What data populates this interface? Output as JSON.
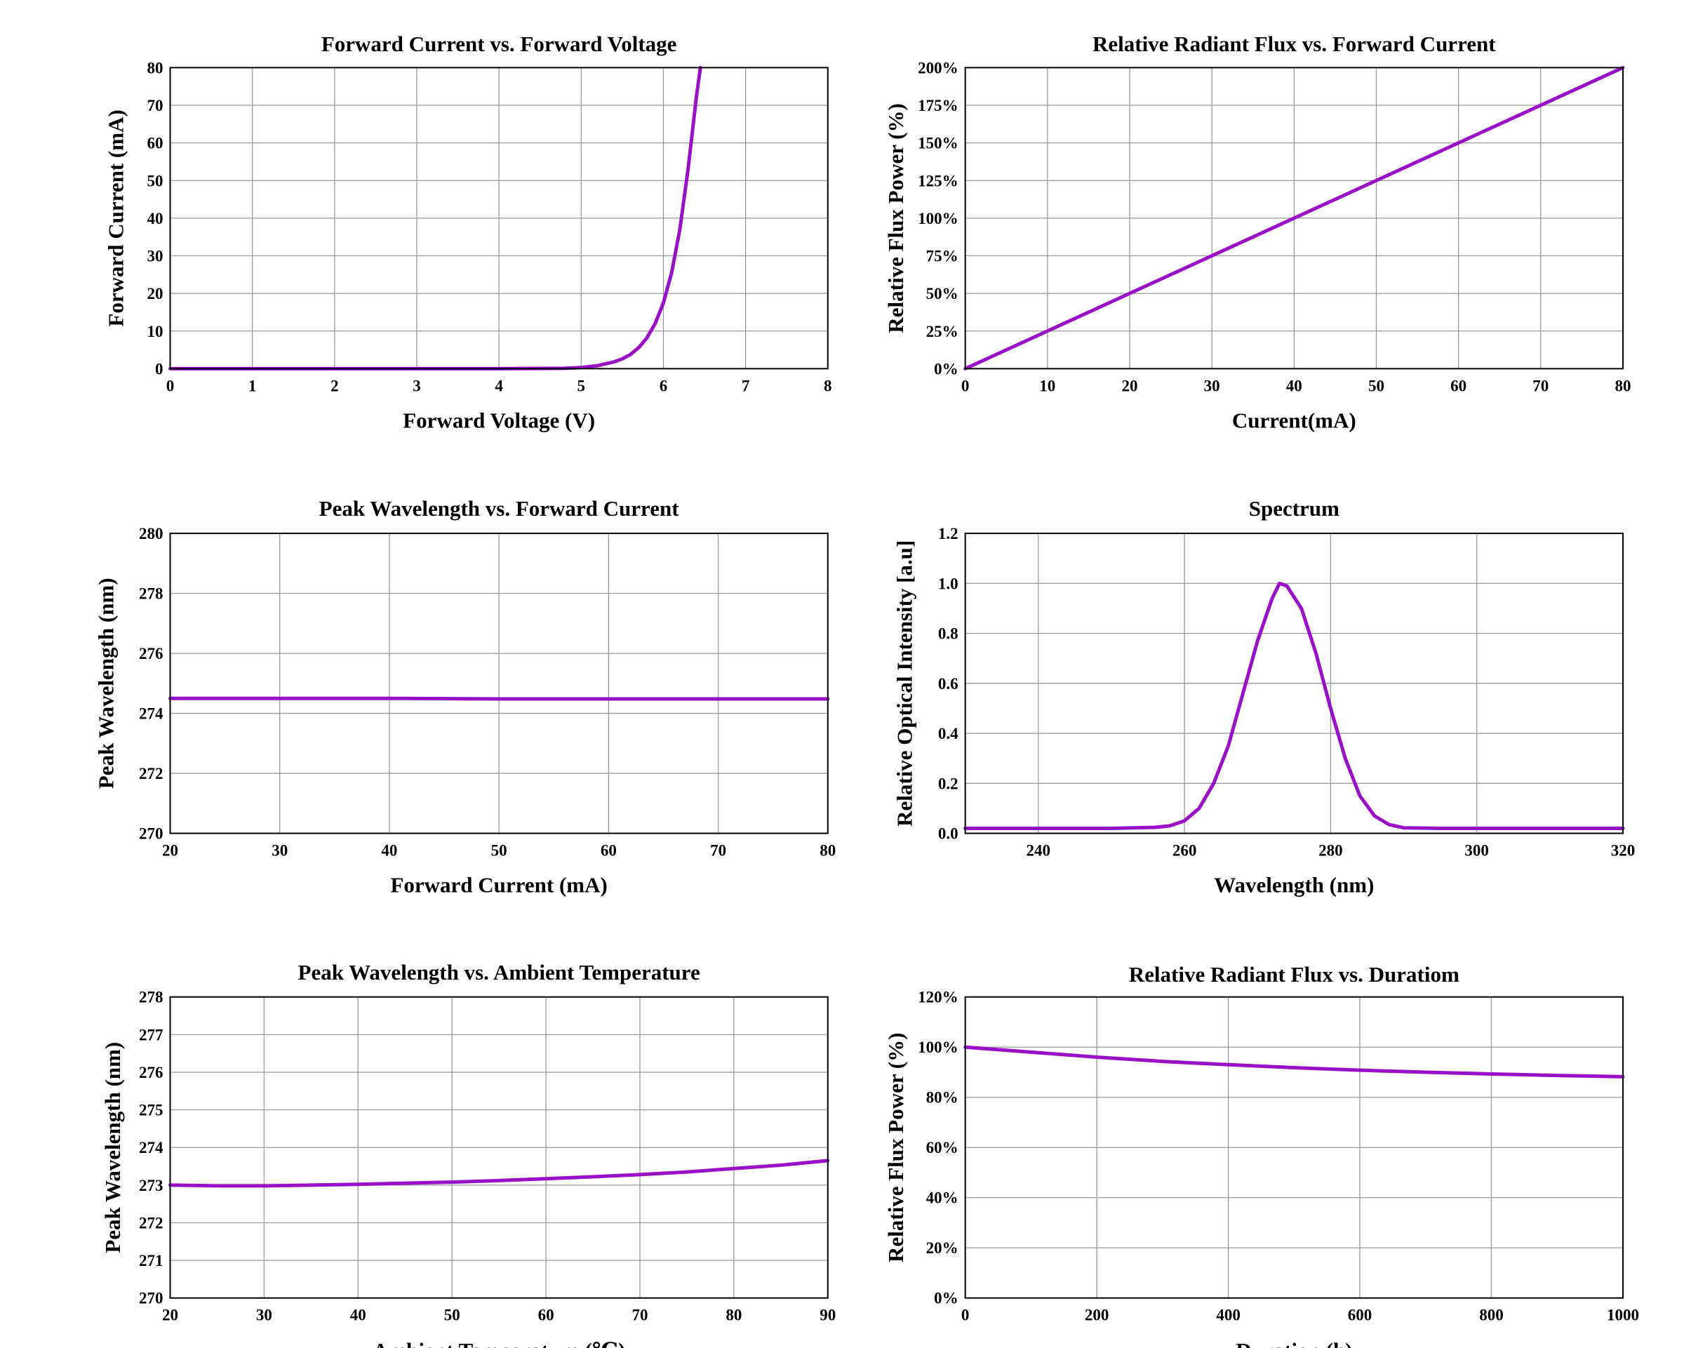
{
  "chart_data": [
    {
      "type": "line",
      "title": "Forward Current vs. Forward Voltage",
      "xlabel": "Forward Voltage (V)",
      "ylabel": "Forward Current (mA)",
      "xlim": [
        0,
        8
      ],
      "ylim": [
        0,
        80
      ],
      "xticks": [
        0,
        1,
        2,
        3,
        4,
        5,
        6,
        7,
        8
      ],
      "yticks": [
        0,
        10,
        20,
        30,
        40,
        50,
        60,
        70,
        80
      ],
      "xtick_labels": [
        "0",
        "1",
        "2",
        "3",
        "4",
        "5",
        "6",
        "7",
        "8"
      ],
      "ytick_labels": [
        "0",
        "10",
        "20",
        "30",
        "40",
        "50",
        "60",
        "70",
        "80"
      ],
      "grid": true,
      "series": [
        {
          "color": "#9a0fc8",
          "x": [
            0,
            1,
            2,
            3,
            4,
            4.8,
            5.0,
            5.2,
            5.4,
            5.5,
            5.6,
            5.7,
            5.8,
            5.9,
            6.0,
            6.1,
            6.2,
            6.3,
            6.4,
            6.45
          ],
          "y": [
            0,
            0,
            0,
            0,
            0,
            0.1,
            0.3,
            0.8,
            1.8,
            2.6,
            3.8,
            5.6,
            8.2,
            12.0,
            17.5,
            25.5,
            37.0,
            53.0,
            72.0,
            80.0
          ]
        }
      ]
    },
    {
      "type": "line",
      "title": "Relative Radiant Flux vs. Forward Current",
      "xlabel": "Current(mA)",
      "ylabel": "Relative Flux Power (%)",
      "xlim": [
        0,
        80
      ],
      "ylim": [
        0,
        200
      ],
      "xticks": [
        0,
        10,
        20,
        30,
        40,
        50,
        60,
        70,
        80
      ],
      "yticks": [
        0,
        25,
        50,
        75,
        100,
        125,
        150,
        175,
        200
      ],
      "xtick_labels": [
        "0",
        "10",
        "20",
        "30",
        "40",
        "50",
        "60",
        "70",
        "80"
      ],
      "ytick_labels": [
        "0%",
        "25%",
        "50%",
        "75%",
        "100%",
        "125%",
        "150%",
        "175%",
        "200%"
      ],
      "grid": true,
      "series": [
        {
          "color": "#9a0fc8",
          "x": [
            0,
            10,
            20,
            30,
            40,
            50,
            60,
            70,
            80
          ],
          "y": [
            0,
            25,
            50,
            75,
            100,
            125,
            150,
            175,
            200
          ]
        }
      ]
    },
    {
      "type": "line",
      "title": "Peak Wavelength vs. Forward Current",
      "xlabel": "Forward Current (mA)",
      "ylabel": "Peak Wavelength (nm)",
      "xlim": [
        20,
        80
      ],
      "ylim": [
        270,
        280
      ],
      "xticks": [
        20,
        30,
        40,
        50,
        60,
        70,
        80
      ],
      "yticks": [
        270,
        272,
        274,
        276,
        278,
        280
      ],
      "xtick_labels": [
        "20",
        "30",
        "40",
        "50",
        "60",
        "70",
        "80"
      ],
      "ytick_labels": [
        "270",
        "272",
        "274",
        "276",
        "278",
        "280"
      ],
      "grid": true,
      "series": [
        {
          "color": "#9a0fc8",
          "x": [
            20,
            30,
            40,
            50,
            60,
            70,
            80
          ],
          "y": [
            274.5,
            274.5,
            274.5,
            274.48,
            274.48,
            274.48,
            274.48
          ]
        }
      ]
    },
    {
      "type": "line",
      "title": "Spectrum",
      "xlabel": "Wavelength (nm)",
      "ylabel": "Relative Optical Intensity [a.u]",
      "xlim": [
        230,
        320
      ],
      "ylim": [
        0,
        1.2
      ],
      "xticks": [
        240,
        260,
        280,
        300,
        320
      ],
      "yticks": [
        0,
        0.2,
        0.4,
        0.6,
        0.8,
        1.0,
        1.2
      ],
      "xtick_labels": [
        "240",
        "260",
        "280",
        "300",
        "320"
      ],
      "ytick_labels": [
        "0.0",
        "0.2",
        "0.4",
        "0.6",
        "0.8",
        "1.0",
        "1.2"
      ],
      "grid": true,
      "series": [
        {
          "color": "#9a0fc8",
          "x": [
            230,
            240,
            250,
            256,
            258,
            260,
            262,
            264,
            266,
            268,
            270,
            272,
            273,
            274,
            276,
            278,
            280,
            282,
            284,
            286,
            288,
            290,
            295,
            300,
            310,
            320
          ],
          "y": [
            0.02,
            0.02,
            0.02,
            0.024,
            0.03,
            0.05,
            0.1,
            0.2,
            0.35,
            0.56,
            0.77,
            0.94,
            1.0,
            0.99,
            0.9,
            0.72,
            0.5,
            0.3,
            0.15,
            0.07,
            0.035,
            0.022,
            0.02,
            0.02,
            0.02,
            0.02
          ]
        }
      ]
    },
    {
      "type": "line",
      "title": "Peak Wavelength vs. Ambient Temperature",
      "xlabel": "Ambient Temperature (℃)",
      "ylabel": "Peak Wavelength (nm)",
      "xlim": [
        20,
        90
      ],
      "ylim": [
        270,
        278
      ],
      "xticks": [
        20,
        30,
        40,
        50,
        60,
        70,
        80,
        90
      ],
      "yticks": [
        270,
        271,
        272,
        273,
        274,
        275,
        276,
        277,
        278
      ],
      "xtick_labels": [
        "20",
        "30",
        "40",
        "50",
        "60",
        "70",
        "80",
        "90"
      ],
      "ytick_labels": [
        "270",
        "271",
        "272",
        "273",
        "274",
        "275",
        "276",
        "277",
        "278"
      ],
      "grid": true,
      "series": [
        {
          "color": "#9a0fc8",
          "x": [
            20,
            25,
            30,
            35,
            40,
            45,
            50,
            55,
            60,
            65,
            70,
            75,
            80,
            85,
            90
          ],
          "y": [
            273.0,
            272.98,
            272.98,
            273.0,
            273.02,
            273.05,
            273.08,
            273.12,
            273.17,
            273.22,
            273.28,
            273.35,
            273.44,
            273.53,
            273.65
          ]
        }
      ]
    },
    {
      "type": "line",
      "title": "Relative Radiant Flux vs. Duratiom",
      "xlabel": "Duration (h)",
      "ylabel": "Relative Flux Power (%)",
      "xlim": [
        0,
        1000
      ],
      "ylim": [
        0,
        120
      ],
      "xticks": [
        0,
        200,
        400,
        600,
        800,
        1000
      ],
      "yticks": [
        0,
        20,
        40,
        60,
        80,
        100,
        120
      ],
      "xtick_labels": [
        "0",
        "200",
        "400",
        "600",
        "800",
        "1000"
      ],
      "ytick_labels": [
        "0%",
        "20%",
        "40%",
        "60%",
        "80%",
        "100%",
        "120%"
      ],
      "grid": true,
      "series": [
        {
          "color": "#9a0fc8",
          "x": [
            0,
            100,
            200,
            300,
            400,
            500,
            600,
            700,
            800,
            900,
            1000
          ],
          "y": [
            100,
            98,
            96,
            94.3,
            93,
            91.8,
            90.8,
            90,
            89.3,
            88.7,
            88.2
          ]
        }
      ]
    }
  ]
}
